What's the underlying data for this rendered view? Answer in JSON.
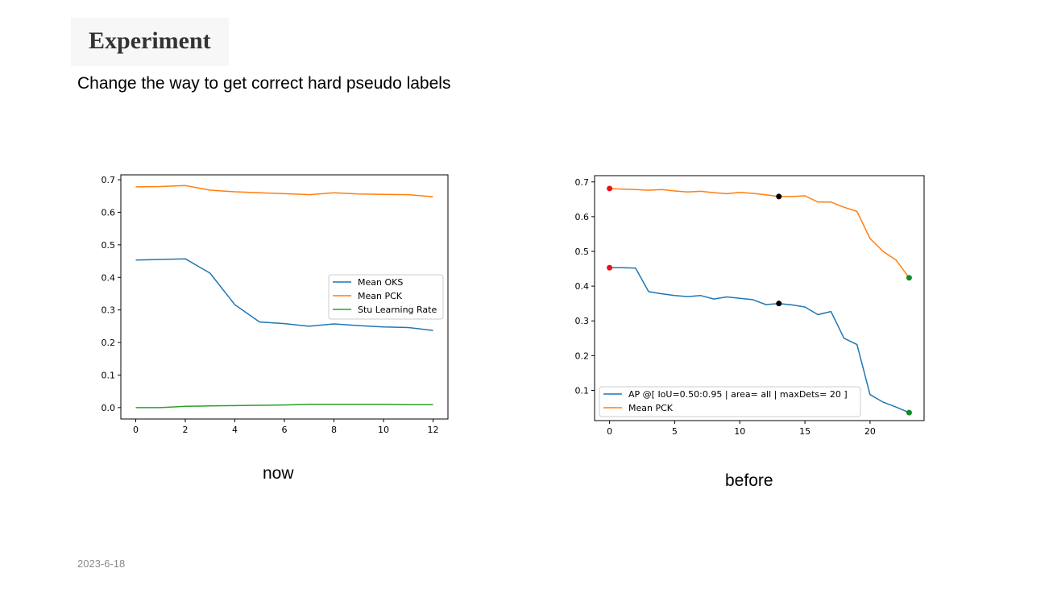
{
  "slide": {
    "title": "Experiment",
    "subtitle": "Change the way to get correct hard pseudo labels",
    "date": "2023-6-18"
  },
  "captions": {
    "now": "now",
    "before": "before"
  },
  "colors": {
    "blue": "#1f77b4",
    "orange": "#ff7f0e",
    "green": "#2ca02c",
    "red": "#e8141a",
    "black": "#000000",
    "dark_green": "#118a2b"
  },
  "chart_data": [
    {
      "type": "line",
      "title": "",
      "xlabel": "",
      "ylabel": "",
      "xlim": [
        -0.6,
        12.6
      ],
      "ylim": [
        -0.035,
        0.715
      ],
      "xticks": [
        0,
        2,
        4,
        6,
        8,
        10,
        12
      ],
      "yticks": [
        0.0,
        0.1,
        0.2,
        0.3,
        0.4,
        0.5,
        0.6,
        0.7
      ],
      "ytick_labels": [
        "0.0",
        "0.1",
        "0.2",
        "0.3",
        "0.4",
        "0.5",
        "0.6",
        "0.7"
      ],
      "x": [
        0,
        1,
        2,
        3,
        4,
        5,
        6,
        7,
        8,
        9,
        10,
        11,
        12
      ],
      "series": [
        {
          "name": "Mean OKS",
          "color": "#1f77b4",
          "values": [
            0.453,
            0.455,
            0.457,
            0.413,
            0.316,
            0.263,
            0.258,
            0.25,
            0.257,
            0.252,
            0.248,
            0.246,
            0.237
          ]
        },
        {
          "name": "Mean PCK",
          "color": "#ff7f0e",
          "values": [
            0.678,
            0.679,
            0.682,
            0.668,
            0.663,
            0.66,
            0.657,
            0.654,
            0.66,
            0.656,
            0.655,
            0.654,
            0.648
          ]
        },
        {
          "name": "Stu Learning Rate",
          "color": "#2ca02c",
          "values": [
            0.0,
            0.0,
            0.004,
            0.005,
            0.006,
            0.007,
            0.008,
            0.01,
            0.01,
            0.01,
            0.01,
            0.009,
            0.009
          ]
        }
      ],
      "legend": "center-right",
      "grid": false
    },
    {
      "type": "line",
      "title": "",
      "xlabel": "",
      "ylabel": "",
      "xlim": [
        -1.15,
        24.15
      ],
      "ylim": [
        0.013,
        0.718
      ],
      "xticks": [
        0,
        5,
        10,
        15,
        20
      ],
      "yticks": [
        0.1,
        0.2,
        0.3,
        0.4,
        0.5,
        0.6,
        0.7
      ],
      "ytick_labels": [
        "0.1",
        "0.2",
        "0.3",
        "0.4",
        "0.5",
        "0.6",
        "0.7"
      ],
      "x": [
        0,
        1,
        2,
        3,
        4,
        5,
        6,
        7,
        8,
        9,
        10,
        11,
        12,
        13,
        14,
        15,
        16,
        17,
        18,
        19,
        20,
        21,
        22,
        23
      ],
      "series": [
        {
          "name": "AP @[ IoU=0.50:0.95 | area= all | maxDets= 20 ]",
          "color": "#1f77b4",
          "values": [
            0.453,
            0.453,
            0.452,
            0.384,
            0.378,
            0.373,
            0.37,
            0.373,
            0.363,
            0.369,
            0.365,
            0.361,
            0.347,
            0.35,
            0.346,
            0.34,
            0.318,
            0.327,
            0.25,
            0.232,
            0.088,
            0.066,
            0.052,
            0.036
          ]
        },
        {
          "name": "Mean PCK",
          "color": "#ff7f0e",
          "values": [
            0.681,
            0.679,
            0.678,
            0.676,
            0.678,
            0.674,
            0.671,
            0.673,
            0.669,
            0.666,
            0.67,
            0.667,
            0.663,
            0.658,
            0.658,
            0.66,
            0.642,
            0.642,
            0.627,
            0.615,
            0.537,
            0.5,
            0.475,
            0.424
          ]
        }
      ],
      "markers": [
        {
          "x": 0,
          "y": 0.681,
          "color": "#e8141a"
        },
        {
          "x": 0,
          "y": 0.453,
          "color": "#e8141a"
        },
        {
          "x": 13,
          "y": 0.658,
          "color": "#000000"
        },
        {
          "x": 13,
          "y": 0.35,
          "color": "#000000"
        },
        {
          "x": 23,
          "y": 0.424,
          "color": "#118a2b"
        },
        {
          "x": 23,
          "y": 0.036,
          "color": "#118a2b"
        }
      ],
      "legend": "bottom-left",
      "grid": false
    }
  ]
}
